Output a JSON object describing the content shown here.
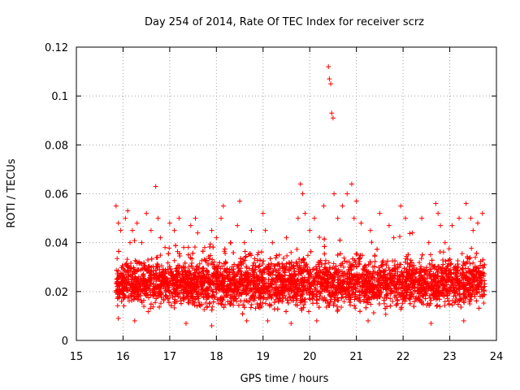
{
  "chart_data": {
    "type": "scatter",
    "title": "Day 254 of 2014, Rate Of TEC Index for receiver scrz",
    "xlabel": "GPS time / hours",
    "ylabel": "ROTI / TECUs",
    "xlim": [
      15,
      24
    ],
    "ylim": [
      0,
      0.12
    ],
    "xticks": [
      15,
      16,
      17,
      18,
      19,
      20,
      21,
      22,
      23,
      24
    ],
    "xtick_labels": [
      "15",
      "16",
      "17",
      "18",
      "19",
      "20",
      "21",
      "22",
      "23",
      "24"
    ],
    "yticks": [
      0,
      0.02,
      0.04,
      0.06,
      0.08,
      0.1,
      0.12
    ],
    "ytick_labels": [
      "0",
      "0.02",
      "0.04",
      "0.06",
      "0.08",
      "0.1",
      "0.12"
    ],
    "grid": true,
    "marker": "plus",
    "color": "#ff0000",
    "series": [
      {
        "name": "ROTI",
        "dense_band": {
          "x_range": [
            15.85,
            23.75
          ],
          "typical_range": [
            0.01,
            0.033
          ],
          "note": "dense cluster of several thousand points"
        },
        "x": [
          15.85,
          15.9,
          15.95,
          16.05,
          16.1,
          16.15,
          16.2,
          16.3,
          16.4,
          16.5,
          16.6,
          16.7,
          16.75,
          16.8,
          16.9,
          17.0,
          17.1,
          17.2,
          17.3,
          17.45,
          17.55,
          17.6,
          17.75,
          17.9,
          18.0,
          18.1,
          18.15,
          18.3,
          18.45,
          18.5,
          18.6,
          18.75,
          18.9,
          19.0,
          19.05,
          19.2,
          19.35,
          19.5,
          19.6,
          19.75,
          19.8,
          19.85,
          19.9,
          20.0,
          20.1,
          20.3,
          20.4,
          20.42,
          20.45,
          20.47,
          20.5,
          20.52,
          20.6,
          20.7,
          20.8,
          20.9,
          20.95,
          21.0,
          21.1,
          21.3,
          21.5,
          21.7,
          21.8,
          21.95,
          22.05,
          22.2,
          22.4,
          22.55,
          22.7,
          22.75,
          22.8,
          22.9,
          23.05,
          23.2,
          23.35,
          23.45,
          23.5,
          23.6,
          23.7,
          15.9,
          16.25,
          17.35,
          17.9,
          18.65,
          19.1,
          19.6,
          20.15,
          21.25,
          22.6,
          23.3
        ],
        "y": [
          0.055,
          0.048,
          0.045,
          0.05,
          0.053,
          0.04,
          0.045,
          0.048,
          0.04,
          0.052,
          0.045,
          0.063,
          0.05,
          0.042,
          0.038,
          0.048,
          0.045,
          0.05,
          0.038,
          0.047,
          0.05,
          0.044,
          0.038,
          0.045,
          0.042,
          0.05,
          0.055,
          0.04,
          0.047,
          0.057,
          0.04,
          0.045,
          0.036,
          0.052,
          0.045,
          0.04,
          0.035,
          0.042,
          0.036,
          0.05,
          0.064,
          0.06,
          0.052,
          0.045,
          0.05,
          0.055,
          0.112,
          0.107,
          0.105,
          0.093,
          0.091,
          0.06,
          0.05,
          0.055,
          0.06,
          0.064,
          0.05,
          0.057,
          0.048,
          0.045,
          0.052,
          0.047,
          0.042,
          0.055,
          0.05,
          0.044,
          0.05,
          0.04,
          0.056,
          0.052,
          0.047,
          0.04,
          0.047,
          0.05,
          0.056,
          0.05,
          0.045,
          0.048,
          0.052,
          0.009,
          0.008,
          0.007,
          0.006,
          0.008,
          0.008,
          0.007,
          0.008,
          0.008,
          0.007,
          0.008
        ]
      }
    ]
  }
}
